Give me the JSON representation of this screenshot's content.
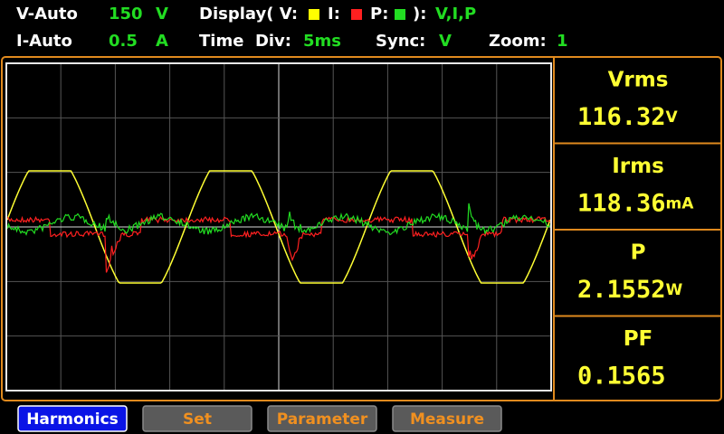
{
  "status": {
    "voltage_range_label": "V-Auto",
    "voltage_range": "150",
    "voltage_unit": "V",
    "current_range_label": "I-Auto",
    "current_range": "0.5",
    "current_unit": "A",
    "display_label": "Display( V:",
    "display_i": "I:",
    "display_p": "P:",
    "display_close": "):",
    "display_value": "V,I,P",
    "time_div_label": "Time  Div:",
    "time_div": "5ms",
    "sync_label": "Sync:",
    "sync": "V",
    "zoom_label": "Zoom:",
    "zoom": "1"
  },
  "measurements": [
    {
      "label": "Vrms",
      "value": "116.32",
      "unit": "V"
    },
    {
      "label": "Irms",
      "value": "118.36",
      "unit": "mA"
    },
    {
      "label": "P",
      "value": "2.1552",
      "unit": "W"
    },
    {
      "label": "PF",
      "value": "0.1565",
      "unit": ""
    }
  ],
  "buttons": [
    "Harmonics",
    "Set",
    "Parameter",
    "Measure"
  ]
}
